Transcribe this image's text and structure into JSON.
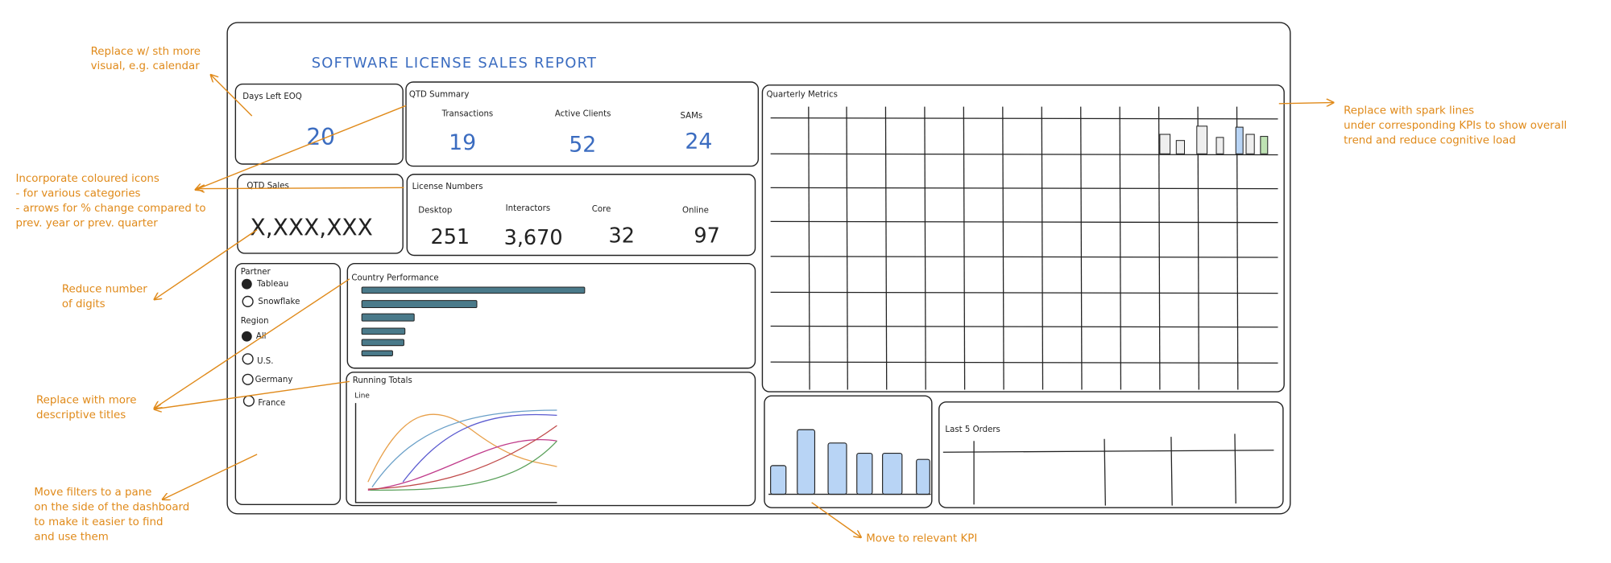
{
  "header": {
    "title": "SOFTWARE LICENSE SALES REPORT"
  },
  "days_left": {
    "label": "Days Left EOQ",
    "value": "20"
  },
  "qtd_summary": {
    "label": "QTD Summary",
    "items": [
      {
        "label": "Transactions",
        "value": "19"
      },
      {
        "label": "Active Clients",
        "value": "52"
      },
      {
        "label": "SAMs",
        "value": "24"
      }
    ]
  },
  "qtd_sales": {
    "label": "QTD Sales",
    "value": "X,XXX,XXX"
  },
  "license_numbers": {
    "label": "License Numbers",
    "items": [
      {
        "label": "Desktop",
        "value": "251"
      },
      {
        "label": "Interactors",
        "value": "3,670"
      },
      {
        "label": "Core",
        "value": "32"
      },
      {
        "label": "Online",
        "value": "97"
      }
    ]
  },
  "filters": {
    "groups": [
      {
        "label": "Partner",
        "options": [
          "Tableau",
          "Snowflake"
        ]
      },
      {
        "label": "Region",
        "options": [
          "All",
          "U.S.",
          "Germany",
          "France"
        ]
      }
    ]
  },
  "country_performance": {
    "label": "Country Performance"
  },
  "running_totals": {
    "label": "Running Totals",
    "sublabel": "Line"
  },
  "quarterly_metrics": {
    "label": "Quarterly Metrics"
  },
  "last_orders": {
    "label": "Last 5 Orders"
  },
  "annotations": [
    {
      "lines": [
        "Replace w/ sth more",
        "visual, e.g. calendar"
      ]
    },
    {
      "lines": [
        "Incorporate coloured icons",
        "- for various categories",
        "- arrows for % change compared to",
        "prev. year or prev. quarter"
      ]
    },
    {
      "lines": [
        "Reduce number",
        "of digits"
      ]
    },
    {
      "lines": [
        "Replace with more",
        "descriptive titles"
      ]
    },
    {
      "lines": [
        "Move filters to a pane",
        "on the side of the dashboard",
        "to make it easier to find",
        "and use them"
      ]
    },
    {
      "lines": [
        "Replace with spark lines",
        "under corresponding KPIs to show overall",
        "trend and reduce cognitive load"
      ]
    },
    {
      "lines": [
        "Move to relevant KPI"
      ]
    }
  ]
}
